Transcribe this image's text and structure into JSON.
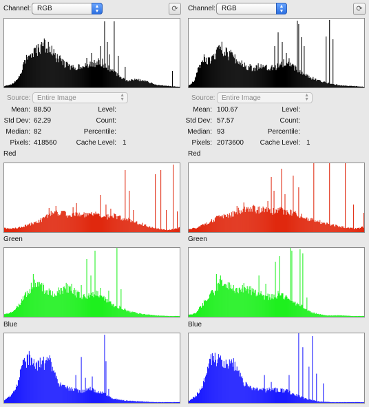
{
  "panels": [
    {
      "channel_label": "Channel:",
      "channel_value": "RGB",
      "source_label": "Source:",
      "source_value": "Entire Image",
      "stats": {
        "mean_label": "Mean:",
        "mean": "88.50",
        "stddev_label": "Std Dev:",
        "stddev": "62.29",
        "median_label": "Median:",
        "median": "82",
        "pixels_label": "Pixels:",
        "pixels": "418560",
        "level_label": "Level:",
        "level": "",
        "count_label": "Count:",
        "count": "",
        "percentile_label": "Percentile:",
        "percentile": "",
        "cache_label": "Cache Level:",
        "cache": "1"
      },
      "red_label": "Red",
      "green_label": "Green",
      "blue_label": "Blue"
    },
    {
      "channel_label": "Channel:",
      "channel_value": "RGB",
      "source_label": "Source:",
      "source_value": "Entire Image",
      "stats": {
        "mean_label": "Mean:",
        "mean": "100.67",
        "stddev_label": "Std Dev:",
        "stddev": "57.57",
        "median_label": "Median:",
        "median": "93",
        "pixels_label": "Pixels:",
        "pixels": "2073600",
        "level_label": "Level:",
        "level": "",
        "count_label": "Count:",
        "count": "",
        "percentile_label": "Percentile:",
        "percentile": "",
        "cache_label": "Cache Level:",
        "cache": "1"
      },
      "red_label": "Red",
      "green_label": "Green",
      "blue_label": "Blue"
    }
  ],
  "icons": {
    "refresh": "refresh-icon",
    "select_arrows": "updown-arrows-icon"
  },
  "colors": {
    "luminosity": "#000000",
    "red": "#e0280e",
    "green": "#1ef01e",
    "blue": "#1a1aff",
    "select_accent": "#2c6fe0"
  },
  "chart_data": [
    {
      "type": "area",
      "panel": 0,
      "channel": "luminosity",
      "x_range": [
        0,
        255
      ],
      "profile": [
        [
          0,
          2
        ],
        [
          10,
          4
        ],
        [
          18,
          10
        ],
        [
          25,
          25
        ],
        [
          30,
          40
        ],
        [
          35,
          45
        ],
        [
          45,
          50
        ],
        [
          55,
          62
        ],
        [
          65,
          58
        ],
        [
          75,
          44
        ],
        [
          90,
          33
        ],
        [
          100,
          28
        ],
        [
          110,
          32
        ],
        [
          120,
          30
        ],
        [
          130,
          35
        ],
        [
          140,
          38
        ],
        [
          150,
          30
        ],
        [
          160,
          22
        ],
        [
          170,
          15
        ],
        [
          180,
          10
        ],
        [
          190,
          12
        ],
        [
          200,
          10
        ],
        [
          210,
          8
        ],
        [
          220,
          4
        ],
        [
          230,
          3
        ],
        [
          240,
          2
        ],
        [
          255,
          1
        ]
      ],
      "spikes": [
        [
          120,
          43
        ],
        [
          127,
          50
        ],
        [
          140,
          60
        ],
        [
          146,
          96
        ],
        [
          150,
          66
        ],
        [
          153,
          48
        ],
        [
          160,
          96
        ],
        [
          166,
          46
        ],
        [
          176,
          30
        ],
        [
          245,
          24
        ]
      ]
    },
    {
      "type": "area",
      "panel": 1,
      "channel": "luminosity",
      "x_range": [
        0,
        255
      ],
      "profile": [
        [
          0,
          3
        ],
        [
          8,
          10
        ],
        [
          15,
          30
        ],
        [
          20,
          45
        ],
        [
          28,
          38
        ],
        [
          35,
          42
        ],
        [
          45,
          58
        ],
        [
          50,
          55
        ],
        [
          55,
          50
        ],
        [
          65,
          44
        ],
        [
          75,
          35
        ],
        [
          85,
          30
        ],
        [
          95,
          28
        ],
        [
          105,
          32
        ],
        [
          115,
          30
        ],
        [
          125,
          28
        ],
        [
          135,
          35
        ],
        [
          145,
          40
        ],
        [
          155,
          28
        ],
        [
          165,
          20
        ],
        [
          175,
          15
        ],
        [
          185,
          12
        ],
        [
          195,
          8
        ],
        [
          205,
          6
        ],
        [
          220,
          3
        ],
        [
          240,
          2
        ],
        [
          255,
          1
        ]
      ],
      "spikes": [
        [
          125,
          60
        ],
        [
          130,
          80
        ],
        [
          136,
          66
        ],
        [
          142,
          50
        ],
        [
          158,
          97
        ],
        [
          160,
          92
        ],
        [
          164,
          73
        ],
        [
          168,
          60
        ],
        [
          200,
          74
        ],
        [
          205,
          98
        ],
        [
          210,
          70
        ]
      ]
    },
    {
      "type": "area",
      "panel": 0,
      "channel": "red",
      "x_range": [
        0,
        255
      ],
      "profile": [
        [
          0,
          6
        ],
        [
          10,
          5
        ],
        [
          20,
          6
        ],
        [
          30,
          9
        ],
        [
          40,
          12
        ],
        [
          55,
          18
        ],
        [
          65,
          26
        ],
        [
          75,
          28
        ],
        [
          85,
          28
        ],
        [
          95,
          24
        ],
        [
          110,
          26
        ],
        [
          120,
          24
        ],
        [
          130,
          26
        ],
        [
          140,
          26
        ],
        [
          150,
          22
        ],
        [
          160,
          24
        ],
        [
          170,
          20
        ],
        [
          180,
          18
        ],
        [
          190,
          14
        ],
        [
          200,
          12
        ],
        [
          210,
          8
        ],
        [
          218,
          6
        ],
        [
          230,
          4
        ],
        [
          240,
          3
        ],
        [
          255,
          6
        ]
      ],
      "spikes": [
        [
          65,
          35
        ],
        [
          75,
          38
        ],
        [
          100,
          36
        ],
        [
          105,
          42
        ],
        [
          140,
          54
        ],
        [
          148,
          40
        ],
        [
          155,
          34
        ],
        [
          176,
          90
        ],
        [
          182,
          60
        ],
        [
          188,
          32
        ],
        [
          220,
          84
        ],
        [
          228,
          90
        ],
        [
          236,
          32
        ],
        [
          246,
          98
        ],
        [
          252,
          30
        ]
      ]
    },
    {
      "type": "area",
      "panel": 1,
      "channel": "red",
      "x_range": [
        0,
        255
      ],
      "profile": [
        [
          0,
          4
        ],
        [
          10,
          6
        ],
        [
          20,
          10
        ],
        [
          30,
          15
        ],
        [
          40,
          20
        ],
        [
          50,
          22
        ],
        [
          60,
          25
        ],
        [
          70,
          30
        ],
        [
          80,
          33
        ],
        [
          90,
          35
        ],
        [
          100,
          32
        ],
        [
          110,
          33
        ],
        [
          120,
          30
        ],
        [
          130,
          33
        ],
        [
          140,
          30
        ],
        [
          150,
          28
        ],
        [
          160,
          25
        ],
        [
          170,
          20
        ],
        [
          180,
          18
        ],
        [
          190,
          15
        ],
        [
          200,
          12
        ],
        [
          210,
          10
        ],
        [
          220,
          8
        ],
        [
          235,
          6
        ],
        [
          245,
          5
        ],
        [
          255,
          8
        ]
      ],
      "spikes": [
        [
          70,
          38
        ],
        [
          80,
          43
        ],
        [
          115,
          45
        ],
        [
          120,
          80
        ],
        [
          124,
          60
        ],
        [
          135,
          92
        ],
        [
          140,
          55
        ],
        [
          152,
          82
        ],
        [
          160,
          65
        ],
        [
          182,
          100
        ],
        [
          205,
          100
        ],
        [
          228,
          100
        ],
        [
          240,
          40
        ],
        [
          255,
          28
        ]
      ]
    },
    {
      "type": "area",
      "panel": 0,
      "channel": "green",
      "x_range": [
        0,
        255
      ],
      "profile": [
        [
          0,
          4
        ],
        [
          10,
          6
        ],
        [
          20,
          16
        ],
        [
          30,
          30
        ],
        [
          40,
          45
        ],
        [
          45,
          50
        ],
        [
          50,
          48
        ],
        [
          60,
          38
        ],
        [
          70,
          34
        ],
        [
          80,
          38
        ],
        [
          90,
          42
        ],
        [
          100,
          38
        ],
        [
          110,
          30
        ],
        [
          120,
          28
        ],
        [
          130,
          34
        ],
        [
          140,
          30
        ],
        [
          150,
          22
        ],
        [
          160,
          16
        ],
        [
          170,
          14
        ],
        [
          180,
          8
        ],
        [
          190,
          6
        ],
        [
          200,
          4
        ],
        [
          220,
          2
        ],
        [
          240,
          1
        ],
        [
          255,
          1
        ]
      ],
      "spikes": [
        [
          42,
          62
        ],
        [
          50,
          44
        ],
        [
          88,
          42
        ],
        [
          98,
          48
        ],
        [
          112,
          46
        ],
        [
          120,
          84
        ],
        [
          126,
          60
        ],
        [
          132,
          96
        ],
        [
          140,
          42
        ],
        [
          152,
          38
        ],
        [
          164,
          100
        ],
        [
          170,
          40
        ]
      ]
    },
    {
      "type": "area",
      "panel": 1,
      "channel": "green",
      "x_range": [
        0,
        255
      ],
      "profile": [
        [
          0,
          3
        ],
        [
          10,
          5
        ],
        [
          15,
          12
        ],
        [
          25,
          25
        ],
        [
          35,
          35
        ],
        [
          42,
          44
        ],
        [
          46,
          50
        ],
        [
          52,
          45
        ],
        [
          60,
          42
        ],
        [
          70,
          40
        ],
        [
          80,
          42
        ],
        [
          90,
          38
        ],
        [
          100,
          34
        ],
        [
          110,
          30
        ],
        [
          120,
          28
        ],
        [
          130,
          32
        ],
        [
          140,
          28
        ],
        [
          150,
          22
        ],
        [
          160,
          18
        ],
        [
          170,
          12
        ],
        [
          180,
          6
        ],
        [
          190,
          4
        ],
        [
          200,
          2
        ],
        [
          220,
          2
        ],
        [
          240,
          1
        ],
        [
          255,
          1
        ]
      ],
      "spikes": [
        [
          40,
          62
        ],
        [
          46,
          60
        ],
        [
          52,
          48
        ],
        [
          65,
          46
        ],
        [
          84,
          40
        ],
        [
          102,
          60
        ],
        [
          112,
          48
        ],
        [
          126,
          80
        ],
        [
          132,
          88
        ],
        [
          148,
          100
        ],
        [
          150,
          96
        ],
        [
          162,
          98
        ],
        [
          166,
          92
        ],
        [
          172,
          28
        ]
      ]
    },
    {
      "type": "area",
      "panel": 0,
      "channel": "blue",
      "x_range": [
        0,
        255
      ],
      "profile": [
        [
          0,
          4
        ],
        [
          10,
          10
        ],
        [
          20,
          30
        ],
        [
          26,
          52
        ],
        [
          30,
          58
        ],
        [
          35,
          66
        ],
        [
          40,
          60
        ],
        [
          48,
          55
        ],
        [
          55,
          58
        ],
        [
          60,
          54
        ],
        [
          66,
          62
        ],
        [
          70,
          48
        ],
        [
          78,
          30
        ],
        [
          85,
          24
        ],
        [
          95,
          20
        ],
        [
          105,
          18
        ],
        [
          115,
          16
        ],
        [
          125,
          22
        ],
        [
          135,
          16
        ],
        [
          145,
          14
        ],
        [
          150,
          10
        ],
        [
          160,
          6
        ],
        [
          170,
          4
        ],
        [
          180,
          3
        ],
        [
          200,
          2
        ],
        [
          220,
          1
        ],
        [
          255,
          1
        ]
      ],
      "spikes": [
        [
          34,
          70
        ],
        [
          40,
          64
        ],
        [
          50,
          60
        ],
        [
          62,
          66
        ],
        [
          104,
          40
        ],
        [
          112,
          66
        ],
        [
          118,
          36
        ],
        [
          128,
          38
        ],
        [
          146,
          98
        ],
        [
          148,
          60
        ],
        [
          152,
          20
        ]
      ]
    },
    {
      "type": "area",
      "panel": 1,
      "channel": "blue",
      "x_range": [
        0,
        255
      ],
      "profile": [
        [
          0,
          3
        ],
        [
          10,
          10
        ],
        [
          20,
          25
        ],
        [
          25,
          40
        ],
        [
          30,
          56
        ],
        [
          35,
          66
        ],
        [
          40,
          62
        ],
        [
          45,
          66
        ],
        [
          50,
          58
        ],
        [
          55,
          55
        ],
        [
          60,
          60
        ],
        [
          65,
          56
        ],
        [
          72,
          44
        ],
        [
          80,
          28
        ],
        [
          90,
          22
        ],
        [
          100,
          20
        ],
        [
          110,
          18
        ],
        [
          120,
          20
        ],
        [
          130,
          18
        ],
        [
          140,
          18
        ],
        [
          150,
          14
        ],
        [
          160,
          10
        ],
        [
          170,
          6
        ],
        [
          180,
          4
        ],
        [
          190,
          2
        ],
        [
          210,
          1
        ],
        [
          255,
          1
        ]
      ],
      "spikes": [
        [
          32,
          70
        ],
        [
          38,
          72
        ],
        [
          46,
          68
        ],
        [
          54,
          62
        ],
        [
          110,
          40
        ],
        [
          120,
          30
        ],
        [
          146,
          40
        ],
        [
          160,
          100
        ],
        [
          166,
          80
        ],
        [
          175,
          52
        ],
        [
          180,
          96
        ],
        [
          186,
          42
        ],
        [
          196,
          28
        ]
      ]
    }
  ]
}
